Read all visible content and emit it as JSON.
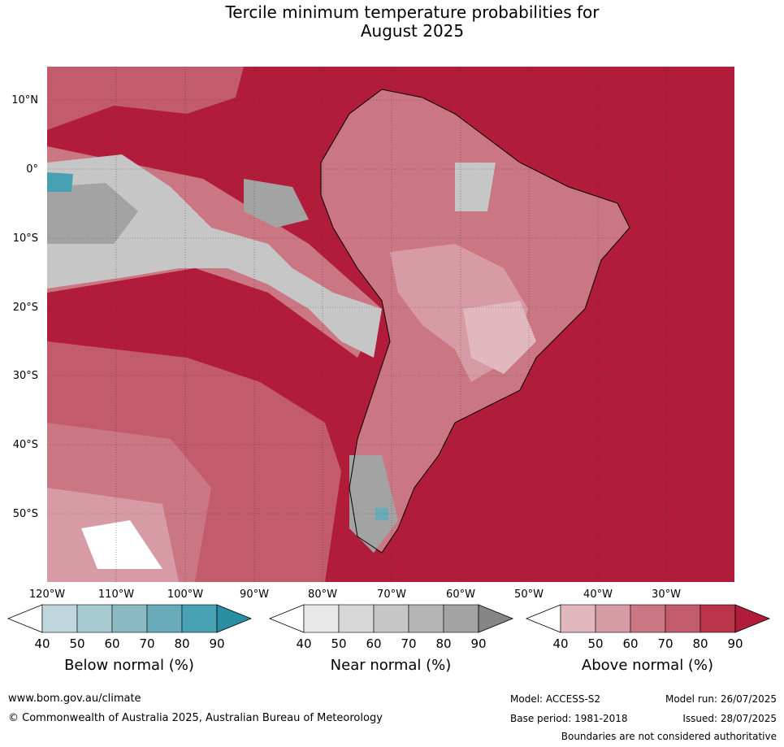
{
  "title_line1": "Tercile minimum temperature probabilities for",
  "title_line2": "August 2025",
  "lat_labels": [
    "10°N",
    "0°",
    "10°S",
    "20°S",
    "30°S",
    "40°S",
    "50°S"
  ],
  "lon_labels": [
    "120°W",
    "110°W",
    "100°W",
    "90°W",
    "80°W",
    "70°W",
    "60°W",
    "50°W",
    "40°W",
    "30°W"
  ],
  "colorbars": [
    {
      "label": "Below normal (%)",
      "ticks": [
        "40",
        "50",
        "60",
        "70",
        "80",
        "90"
      ],
      "colors": [
        "#bfd6dc",
        "#a7c9d0",
        "#8ab9c4",
        "#6aabb9",
        "#47a1b3",
        "#2a8ea3"
      ]
    },
    {
      "label": "Near normal (%)",
      "ticks": [
        "40",
        "50",
        "60",
        "70",
        "80",
        "90"
      ],
      "colors": [
        "#e8e8e8",
        "#d7d7d7",
        "#c6c6c6",
        "#b4b4b4",
        "#a3a3a3",
        "#858585"
      ]
    },
    {
      "label": "Above normal (%)",
      "ticks": [
        "40",
        "50",
        "60",
        "70",
        "80",
        "90"
      ],
      "colors": [
        "#e2b8bf",
        "#d69ba5",
        "#cb7683",
        "#c25b6b",
        "#b93449",
        "#b01c3a"
      ]
    }
  ],
  "footer": {
    "url": "www.bom.gov.au/climate",
    "copyright": "© Commonwealth of Australia 2025, Australian Bureau of Meteorology",
    "model": "Model: ACCESS-S2",
    "base_period": "Base period: 1981-2018",
    "model_run": "Model run: 26/07/2025",
    "issued": "Issued: 28/07/2025",
    "disclaimer": "Boundaries are not considered authoritative"
  }
}
